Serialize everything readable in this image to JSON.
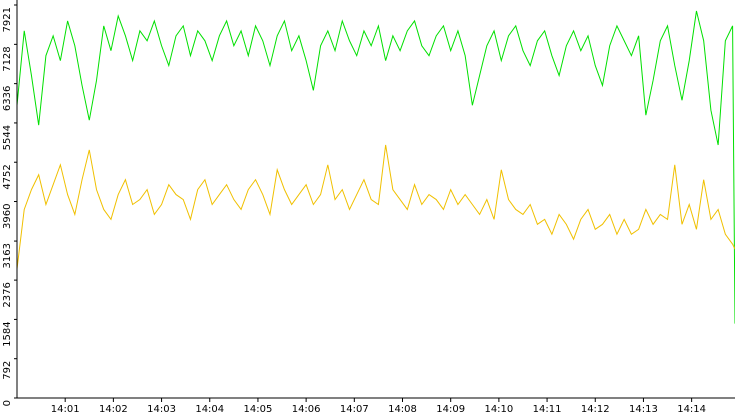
{
  "chart_data": {
    "type": "line",
    "x": [
      0,
      0.15,
      0.3,
      0.45,
      0.6,
      0.75,
      0.9,
      1.05,
      1.2,
      1.35,
      1.5,
      1.65,
      1.8,
      1.95,
      2.1,
      2.25,
      2.4,
      2.55,
      2.7,
      2.85,
      3,
      3.15,
      3.3,
      3.45,
      3.6,
      3.75,
      3.9,
      4.05,
      4.2,
      4.35,
      4.5,
      4.65,
      4.8,
      4.95,
      5.1,
      5.25,
      5.4,
      5.55,
      5.7,
      5.85,
      6,
      6.15,
      6.3,
      6.45,
      6.6,
      6.75,
      6.9,
      7.05,
      7.2,
      7.35,
      7.5,
      7.65,
      7.8,
      7.95,
      8.1,
      8.25,
      8.4,
      8.55,
      8.7,
      8.85,
      9,
      9.15,
      9.3,
      9.45,
      9.6,
      9.75,
      9.9,
      10.05,
      10.2,
      10.35,
      10.5,
      10.65,
      10.8,
      10.95,
      11.1,
      11.25,
      11.4,
      11.55,
      11.7,
      11.85,
      12,
      12.15,
      12.3,
      12.45,
      12.6,
      12.75,
      12.9,
      13.05,
      13.2,
      13.35,
      13.5,
      13.65,
      13.8,
      13.95,
      14.1,
      14.25,
      14.4,
      14.55,
      14.7,
      14.85,
      14.9
    ],
    "series": [
      {
        "color": "#00e000",
        "values": [
          5900,
          7400,
          6500,
          5500,
          6900,
          7300,
          6800,
          7600,
          7100,
          6300,
          5600,
          6400,
          7500,
          7000,
          7700,
          7300,
          6800,
          7400,
          7200,
          7600,
          7100,
          6700,
          7300,
          7500,
          6900,
          7400,
          7200,
          6800,
          7300,
          7600,
          7100,
          7400,
          6900,
          7500,
          7200,
          6700,
          7300,
          7600,
          7000,
          7300,
          6800,
          6200,
          7100,
          7400,
          7000,
          7600,
          7200,
          6900,
          7400,
          7100,
          7500,
          6800,
          7300,
          7000,
          7400,
          7600,
          7100,
          6900,
          7300,
          7500,
          7000,
          7400,
          6900,
          5900,
          6500,
          7100,
          7400,
          6800,
          7300,
          7500,
          7000,
          6700,
          7200,
          7400,
          6900,
          6500,
          7100,
          7400,
          7000,
          7300,
          6700,
          6300,
          7100,
          7500,
          7200,
          6900,
          7300,
          5700,
          6400,
          7200,
          7500,
          6700,
          6000,
          6800,
          7800,
          7200,
          5800,
          5100,
          7200,
          7500,
          1500
        ]
      },
      {
        "color": "#f0c000",
        "values": [
          2600,
          3800,
          4200,
          4500,
          3900,
          4300,
          4700,
          4100,
          3700,
          4400,
          5000,
          4200,
          3800,
          3600,
          4100,
          4400,
          3900,
          4000,
          4200,
          3700,
          3900,
          4300,
          4100,
          4000,
          3600,
          4200,
          4400,
          3900,
          4100,
          4300,
          4000,
          3800,
          4200,
          4400,
          4100,
          3700,
          4600,
          4200,
          3900,
          4100,
          4300,
          3900,
          4100,
          4700,
          4000,
          4200,
          3800,
          4100,
          4400,
          4000,
          3900,
          5100,
          4200,
          4000,
          3800,
          4300,
          3900,
          4100,
          4000,
          3800,
          4200,
          3900,
          4100,
          3900,
          3700,
          4000,
          3600,
          4600,
          4000,
          3800,
          3700,
          3900,
          3500,
          3600,
          3300,
          3700,
          3500,
          3200,
          3600,
          3800,
          3400,
          3500,
          3700,
          3300,
          3600,
          3300,
          3400,
          3800,
          3500,
          3700,
          3600,
          4700,
          3500,
          3900,
          3400,
          4400,
          3600,
          3800,
          3300,
          3100,
          3000
        ]
      }
    ],
    "xlim": [
      0,
      14.9
    ],
    "xticks": [
      {
        "value": 1,
        "label": "14:01"
      },
      {
        "value": 2,
        "label": "14:02"
      },
      {
        "value": 3,
        "label": "14:03"
      },
      {
        "value": 4,
        "label": "14:04"
      },
      {
        "value": 5,
        "label": "14:05"
      },
      {
        "value": 6,
        "label": "14:06"
      },
      {
        "value": 7,
        "label": "14:07"
      },
      {
        "value": 8,
        "label": "14:08"
      },
      {
        "value": 9,
        "label": "14:09"
      },
      {
        "value": 10,
        "label": "14:10"
      },
      {
        "value": 11,
        "label": "14:11"
      },
      {
        "value": 12,
        "label": "14:12"
      },
      {
        "value": 13,
        "label": "14:13"
      },
      {
        "value": 14,
        "label": "14:14"
      }
    ],
    "ylim": [
      0,
      7921
    ],
    "yticks": [
      0,
      792,
      1584,
      2376,
      3163,
      3960,
      4752,
      5544,
      6336,
      7128,
      7921
    ]
  }
}
